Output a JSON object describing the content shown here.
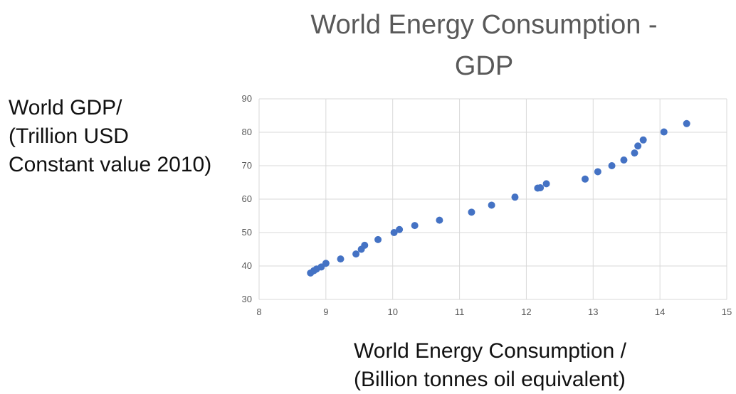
{
  "chart_data": {
    "type": "scatter",
    "title": "World Energy Consumption - GDP",
    "title_lines": [
      "World Energy Consumption -",
      "GDP"
    ],
    "xlabel_lines": [
      "World Energy Consumption /",
      "(Billion tonnes oil equivalent)"
    ],
    "ylabel_lines": [
      "World GDP/",
      "(Trillion USD",
      "Constant value 2010)"
    ],
    "xlim": [
      8,
      15
    ],
    "ylim": [
      30,
      90
    ],
    "x_ticks": [
      8,
      9,
      10,
      11,
      12,
      13,
      14,
      15
    ],
    "y_ticks": [
      30,
      40,
      50,
      60,
      70,
      80,
      90
    ],
    "grid": true,
    "marker_color": "#4472c4",
    "points": [
      {
        "x": 8.77,
        "y": 37.9
      },
      {
        "x": 8.82,
        "y": 38.6
      },
      {
        "x": 8.86,
        "y": 39.1
      },
      {
        "x": 8.93,
        "y": 39.7
      },
      {
        "x": 9.0,
        "y": 40.8
      },
      {
        "x": 9.22,
        "y": 42.1
      },
      {
        "x": 9.45,
        "y": 43.6
      },
      {
        "x": 9.53,
        "y": 45.0
      },
      {
        "x": 9.58,
        "y": 46.2
      },
      {
        "x": 9.78,
        "y": 47.9
      },
      {
        "x": 10.02,
        "y": 50.0
      },
      {
        "x": 10.1,
        "y": 50.9
      },
      {
        "x": 10.33,
        "y": 52.1
      },
      {
        "x": 10.7,
        "y": 53.7
      },
      {
        "x": 11.18,
        "y": 56.1
      },
      {
        "x": 11.48,
        "y": 58.2
      },
      {
        "x": 11.83,
        "y": 60.6
      },
      {
        "x": 12.17,
        "y": 63.3
      },
      {
        "x": 12.21,
        "y": 63.4
      },
      {
        "x": 12.3,
        "y": 64.6
      },
      {
        "x": 12.88,
        "y": 66.0
      },
      {
        "x": 13.07,
        "y": 68.2
      },
      {
        "x": 13.28,
        "y": 70.0
      },
      {
        "x": 13.46,
        "y": 71.7
      },
      {
        "x": 13.62,
        "y": 73.8
      },
      {
        "x": 13.67,
        "y": 75.9
      },
      {
        "x": 13.75,
        "y": 77.7
      },
      {
        "x": 14.06,
        "y": 80.1
      },
      {
        "x": 14.4,
        "y": 82.6
      }
    ]
  }
}
